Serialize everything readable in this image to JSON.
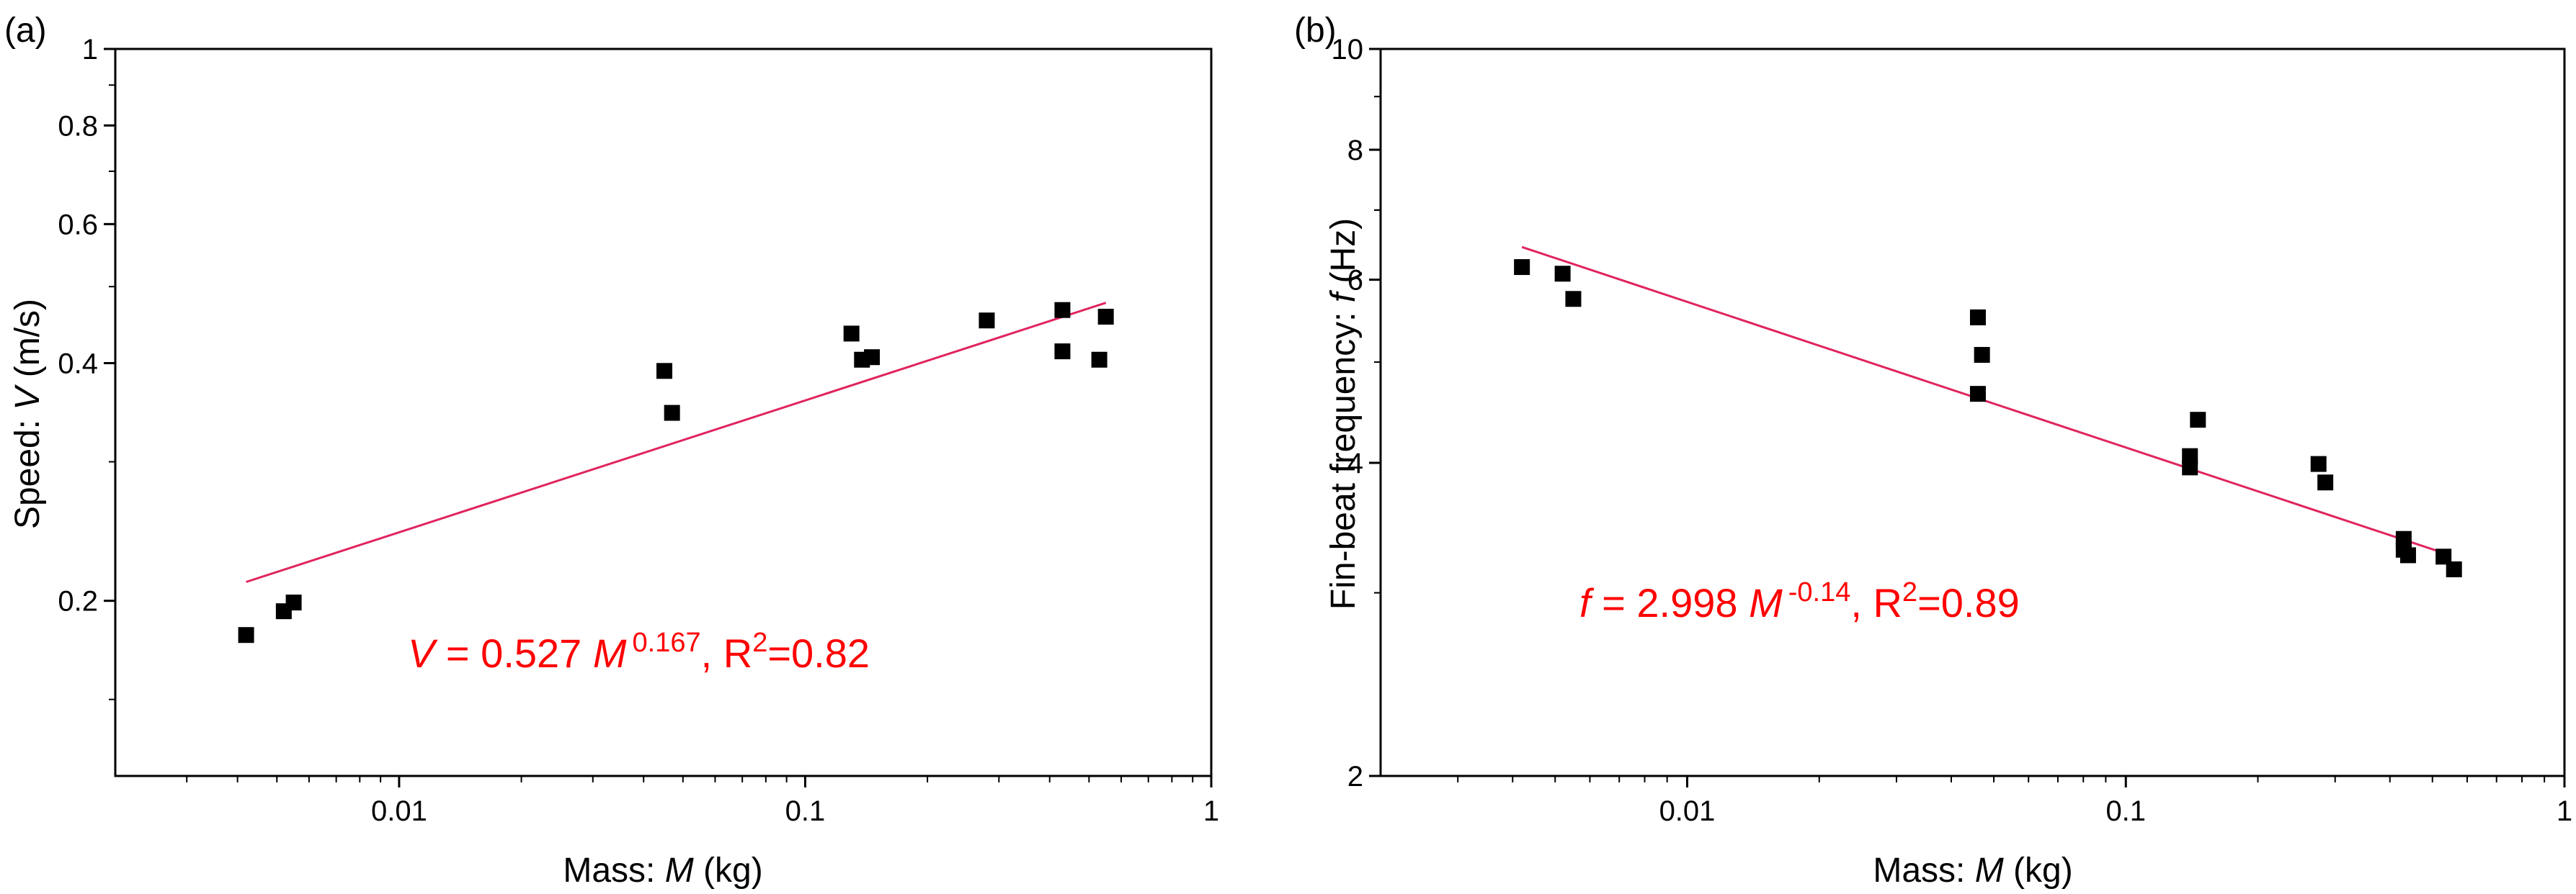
{
  "chart_data": [
    {
      "type": "scatter",
      "panel_label": "(a)",
      "xlabel": {
        "prefix": "Mass: ",
        "var": "M",
        "suffix": " (kg)"
      },
      "ylabel": {
        "prefix": "Speed: ",
        "var": "V",
        "suffix": " (m/s)"
      },
      "xscale": "log",
      "yscale": "log",
      "xlim": [
        0.002,
        1
      ],
      "ylim": [
        0.12,
        1
      ],
      "xticks": [
        {
          "v": 0.01,
          "label": "0.01"
        },
        {
          "v": 0.1,
          "label": "0.1"
        },
        {
          "v": 1,
          "label": "1"
        }
      ],
      "yticks": [
        {
          "v": 0.2,
          "label": "0.2"
        },
        {
          "v": 0.4,
          "label": "0.4"
        },
        {
          "v": 0.6,
          "label": "0.6"
        },
        {
          "v": 0.8,
          "label": "0.8"
        },
        {
          "v": 1,
          "label": "1"
        }
      ],
      "points": [
        {
          "x": 0.0042,
          "y": 0.181
        },
        {
          "x": 0.0052,
          "y": 0.194
        },
        {
          "x": 0.0055,
          "y": 0.199
        },
        {
          "x": 0.045,
          "y": 0.391
        },
        {
          "x": 0.047,
          "y": 0.346
        },
        {
          "x": 0.13,
          "y": 0.436
        },
        {
          "x": 0.138,
          "y": 0.404
        },
        {
          "x": 0.146,
          "y": 0.407
        },
        {
          "x": 0.28,
          "y": 0.453
        },
        {
          "x": 0.43,
          "y": 0.467
        },
        {
          "x": 0.43,
          "y": 0.414
        },
        {
          "x": 0.53,
          "y": 0.404
        },
        {
          "x": 0.55,
          "y": 0.458
        }
      ],
      "fit": {
        "a": 0.527,
        "b": 0.167,
        "x_range": [
          0.0042,
          0.55
        ],
        "color": "#e0245e"
      },
      "equation": {
        "lhs": "V",
        "mid": " = 0.527 ",
        "var": "M",
        "exp": "0.167",
        "r_label": ",  R",
        "r_exp": "2",
        "r_val": "=0.82"
      }
    },
    {
      "type": "scatter",
      "panel_label": "(b)",
      "xlabel": {
        "prefix": "Mass: ",
        "var": "M",
        "suffix": " (kg)"
      },
      "ylabel": {
        "prefix": "Fin-beat frequency: ",
        "var": "f",
        "suffix": " (Hz)"
      },
      "xscale": "log",
      "yscale": "log",
      "xlim": [
        0.002,
        1
      ],
      "ylim": [
        2,
        10
      ],
      "xticks": [
        {
          "v": 0.01,
          "label": "0.01"
        },
        {
          "v": 0.1,
          "label": "0.1"
        },
        {
          "v": 1,
          "label": "1"
        }
      ],
      "yticks": [
        {
          "v": 2,
          "label": "2"
        },
        {
          "v": 4,
          "label": "4"
        },
        {
          "v": 6,
          "label": "6"
        },
        {
          "v": 8,
          "label": "8"
        },
        {
          "v": 10,
          "label": "10"
        }
      ],
      "points": [
        {
          "x": 0.0042,
          "y": 6.17
        },
        {
          "x": 0.0052,
          "y": 6.08
        },
        {
          "x": 0.0055,
          "y": 5.75
        },
        {
          "x": 0.046,
          "y": 5.52
        },
        {
          "x": 0.046,
          "y": 4.66
        },
        {
          "x": 0.047,
          "y": 5.08
        },
        {
          "x": 0.14,
          "y": 4.06
        },
        {
          "x": 0.14,
          "y": 3.96
        },
        {
          "x": 0.146,
          "y": 4.4
        },
        {
          "x": 0.275,
          "y": 3.99
        },
        {
          "x": 0.285,
          "y": 3.83
        },
        {
          "x": 0.43,
          "y": 3.38
        },
        {
          "x": 0.43,
          "y": 3.3
        },
        {
          "x": 0.44,
          "y": 3.26
        },
        {
          "x": 0.53,
          "y": 3.25
        },
        {
          "x": 0.56,
          "y": 3.16
        }
      ],
      "fit": {
        "a": 2.998,
        "b": -0.14,
        "x_range": [
          0.0042,
          0.55
        ],
        "color": "#e0245e"
      },
      "equation": {
        "lhs": "f",
        "mid": " = 2.998 ",
        "var": "M",
        "exp": "-0.14",
        "r_label": ",  R",
        "r_exp": "2",
        "r_val": "=0.89"
      }
    }
  ]
}
